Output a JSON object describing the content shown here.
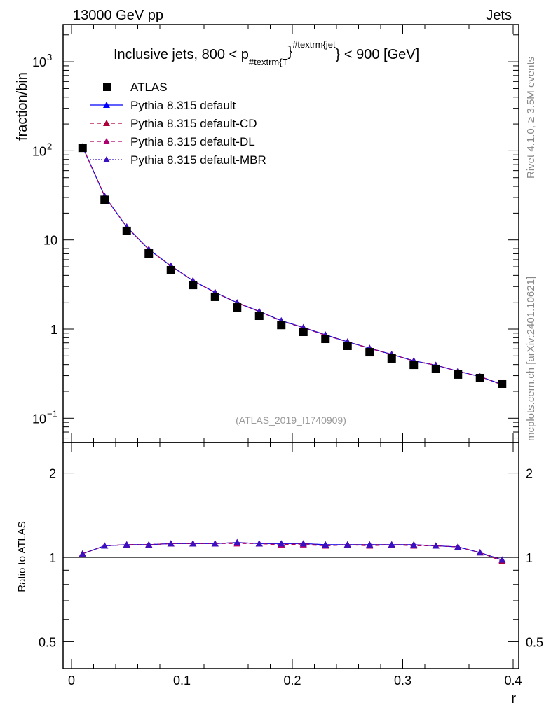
{
  "header": {
    "left": "13000 GeV pp",
    "right": "Jets"
  },
  "side_text": {
    "top": "Rivet 4.1.0, ≥ 3.5M events",
    "bottom": "mcplots.cern.ch [arXiv:2401.10621]"
  },
  "chart_data": {
    "type": "line",
    "title_main": "Inclusive jets, 800 < p",
    "title_sub": "#textrm{T",
    "title_brace1": "}",
    "title_sup": "#textrm{jet",
    "title_end": "} < 900 [GeV]",
    "watermark": "(ATLAS_2019_I1740909)",
    "ylabel": "fraction/bin",
    "ratio_ylabel": "Ratio to ATLAS",
    "xlabel": "r",
    "xlim": [
      0,
      0.4
    ],
    "ylim": [
      0.05,
      2500
    ],
    "ratio_ylim": [
      0.4,
      2.5
    ],
    "yscale": "log",
    "legend_placement": "top-left",
    "x_ticks": [
      {
        "v": 0,
        "label": "0"
      },
      {
        "v": 0.1,
        "label": "0.1"
      },
      {
        "v": 0.2,
        "label": "0.2"
      },
      {
        "v": 0.3,
        "label": "0.3"
      },
      {
        "v": 0.4,
        "label": "0.4"
      }
    ],
    "y_ticks": [
      {
        "v": 0.1,
        "label": "10",
        "exp": "−1"
      },
      {
        "v": 1,
        "label": "1",
        "exp": ""
      },
      {
        "v": 10,
        "label": "10",
        "exp": ""
      },
      {
        "v": 100,
        "label": "10",
        "exp": "2"
      },
      {
        "v": 1000,
        "label": "10",
        "exp": "3"
      }
    ],
    "ratio_ticks": [
      {
        "v": 0.5,
        "label": "0.5"
      },
      {
        "v": 1,
        "label": "1"
      },
      {
        "v": 2,
        "label": "2"
      }
    ],
    "x": [
      0.01,
      0.03,
      0.05,
      0.07,
      0.09,
      0.11,
      0.13,
      0.15,
      0.17,
      0.19,
      0.21,
      0.23,
      0.25,
      0.27,
      0.29,
      0.31,
      0.33,
      0.35,
      0.37,
      0.39
    ],
    "data": {
      "name": "ATLAS",
      "color": "#000000",
      "values": [
        108,
        28.2,
        12.6,
        7.05,
        4.57,
        3.12,
        2.3,
        1.75,
        1.41,
        1.11,
        0.93,
        0.776,
        0.648,
        0.55,
        0.468,
        0.397,
        0.357,
        0.309,
        0.282,
        0.244
      ]
    },
    "series": [
      {
        "name": "Pythia 8.315 default",
        "color": "#0000ff",
        "dash": "",
        "ratio": [
          1.03,
          1.1,
          1.11,
          1.11,
          1.12,
          1.12,
          1.12,
          1.13,
          1.12,
          1.12,
          1.12,
          1.11,
          1.11,
          1.11,
          1.11,
          1.11,
          1.1,
          1.09,
          1.04,
          0.98
        ]
      },
      {
        "name": "Pythia 8.315 default-CD",
        "color": "#b0003a",
        "dash": "6,4",
        "ratio": [
          1.03,
          1.1,
          1.11,
          1.11,
          1.12,
          1.12,
          1.12,
          1.13,
          1.12,
          1.11,
          1.12,
          1.1,
          1.11,
          1.11,
          1.11,
          1.11,
          1.1,
          1.09,
          1.04,
          0.97
        ]
      },
      {
        "name": "Pythia 8.315 default-DL",
        "color": "#b0006e",
        "dash": "6,4",
        "ratio": [
          1.03,
          1.1,
          1.11,
          1.11,
          1.12,
          1.12,
          1.12,
          1.12,
          1.12,
          1.11,
          1.11,
          1.1,
          1.11,
          1.1,
          1.11,
          1.1,
          1.1,
          1.09,
          1.04,
          0.98
        ]
      },
      {
        "name": "Pythia 8.315 default-MBR",
        "color": "#3a10c0",
        "dash": "2,2",
        "ratio": [
          1.03,
          1.1,
          1.11,
          1.11,
          1.12,
          1.12,
          1.12,
          1.13,
          1.12,
          1.12,
          1.12,
          1.11,
          1.11,
          1.11,
          1.11,
          1.11,
          1.1,
          1.09,
          1.04,
          0.98
        ]
      }
    ]
  }
}
